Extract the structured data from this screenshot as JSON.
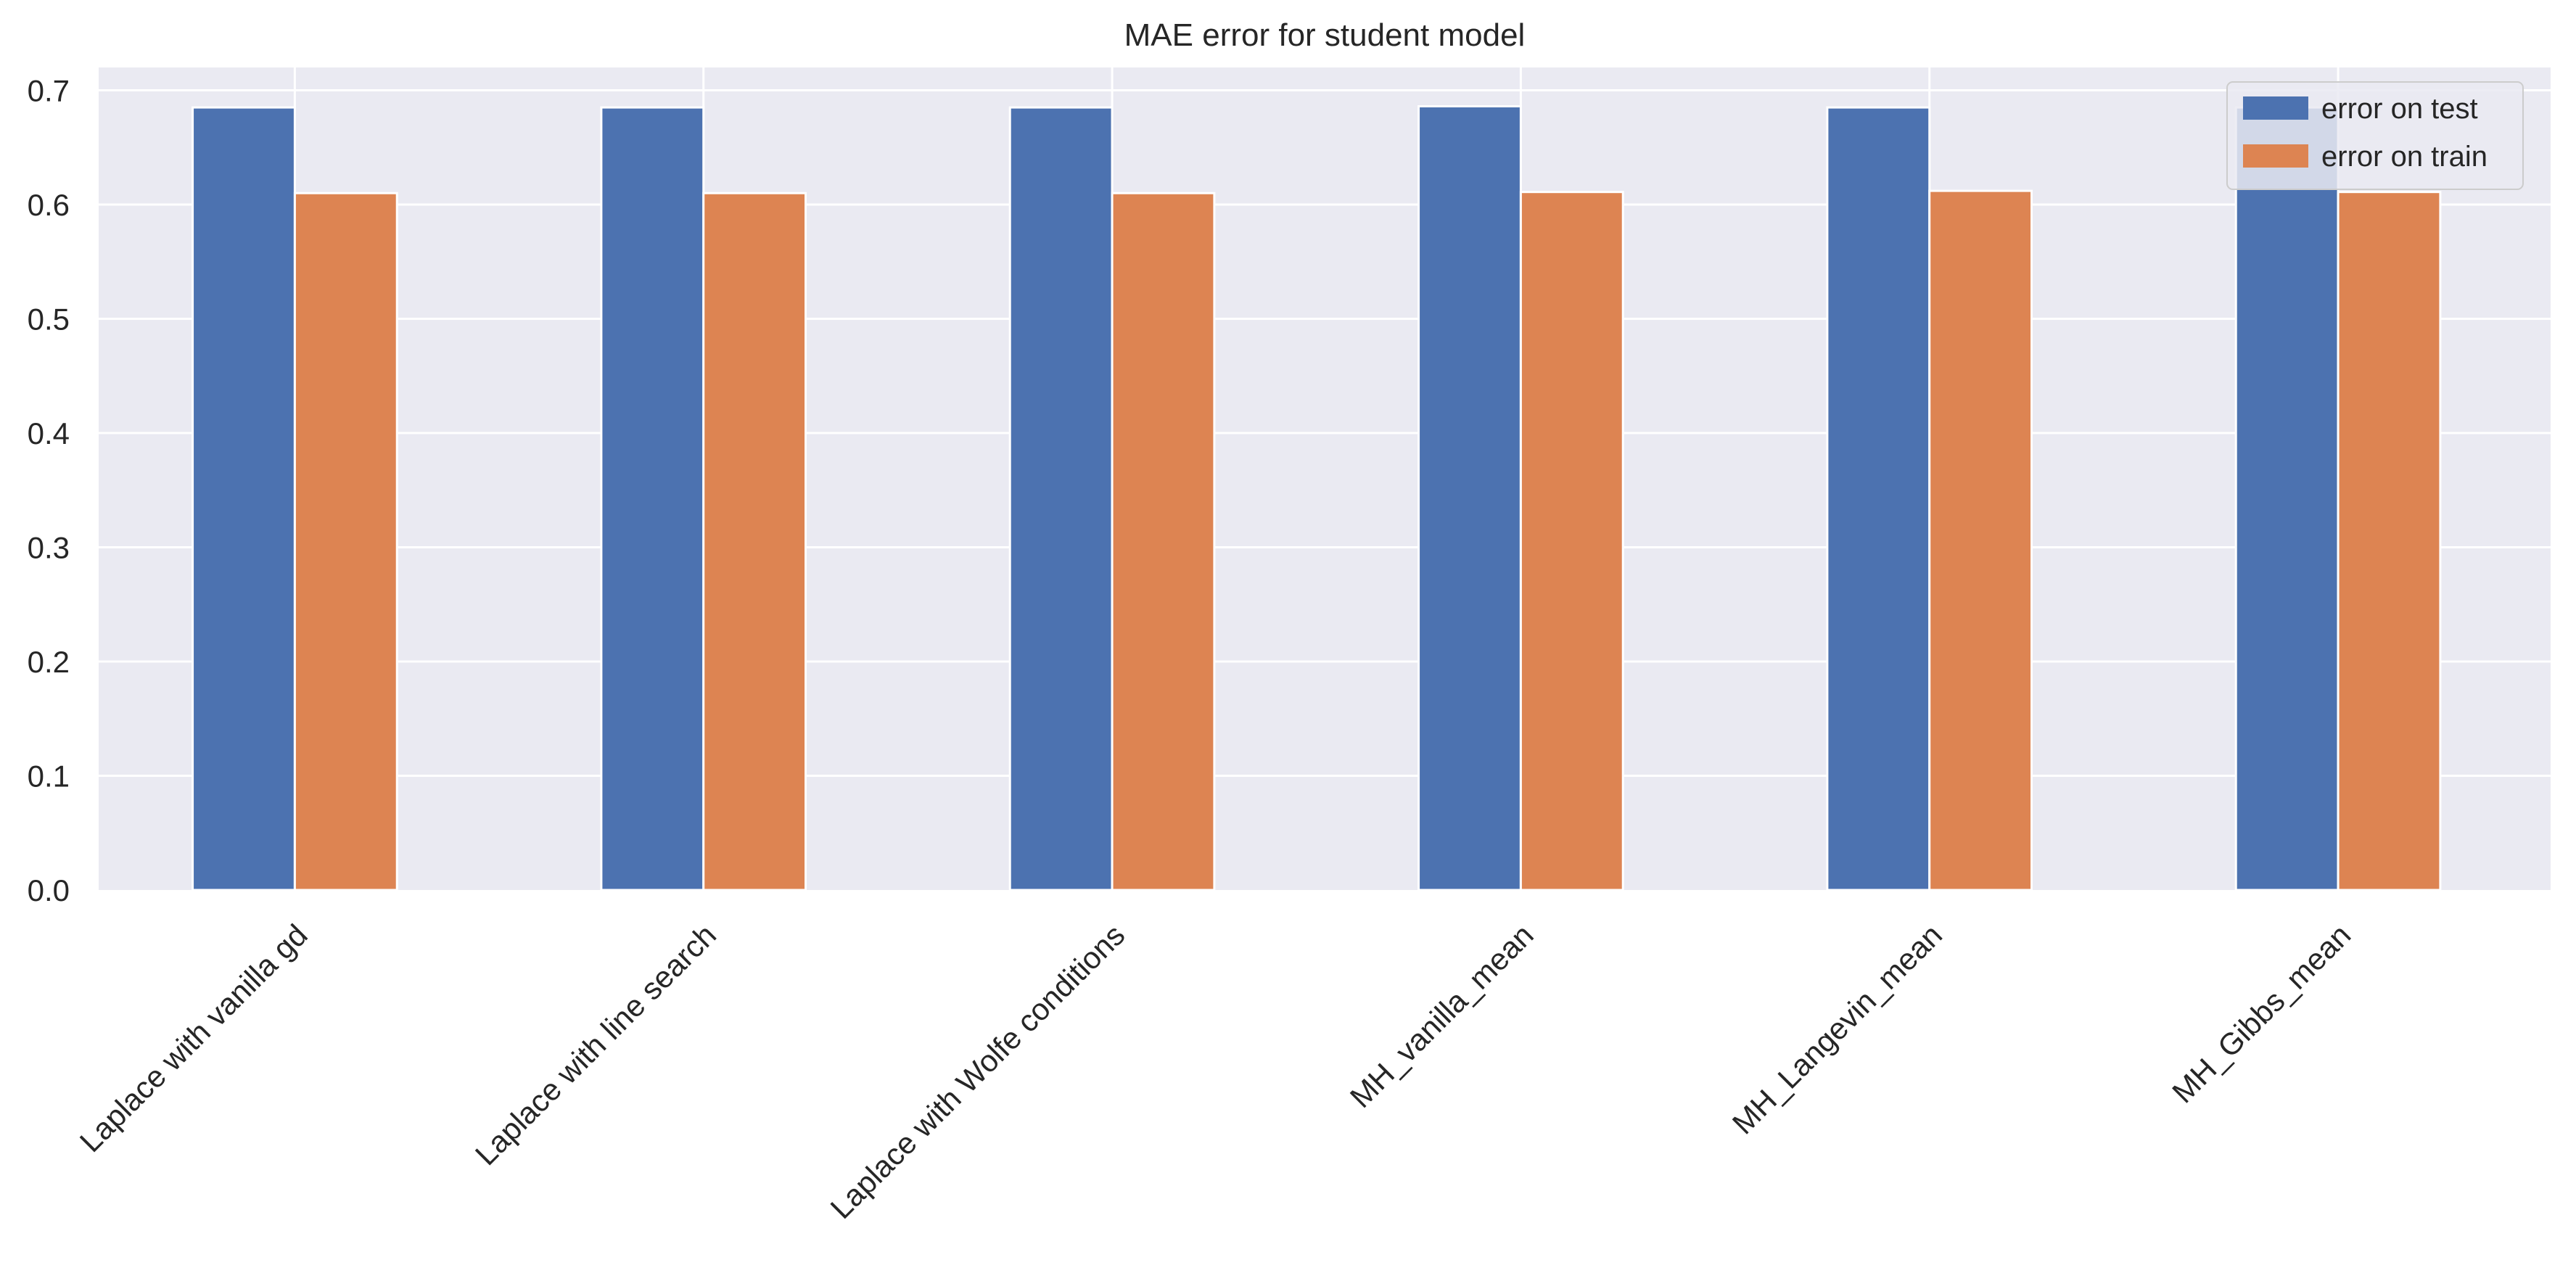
{
  "chart_data": {
    "type": "bar",
    "title": "MAE error for student model",
    "xlabel": "",
    "ylabel": "",
    "categories": [
      "Laplace with vanilla gd",
      "Laplace with line search",
      "Laplace with Wolfe conditions",
      "MH_vanilla_mean",
      "MH_Langevin_mean",
      "MH_Gibbs_mean"
    ],
    "series": [
      {
        "name": "error on test",
        "color": "#4c72b0",
        "values": [
          0.685,
          0.685,
          0.685,
          0.686,
          0.685,
          0.685
        ]
      },
      {
        "name": "error on train",
        "color": "#dd8452",
        "values": [
          0.61,
          0.61,
          0.61,
          0.611,
          0.612,
          0.611
        ]
      }
    ],
    "ylim": [
      0,
      0.72
    ],
    "yticks": [
      "0.0",
      "0.1",
      "0.2",
      "0.3",
      "0.4",
      "0.5",
      "0.6",
      "0.7"
    ],
    "grid": true,
    "legend_position": "top-right",
    "background": "#eaeaf2"
  }
}
